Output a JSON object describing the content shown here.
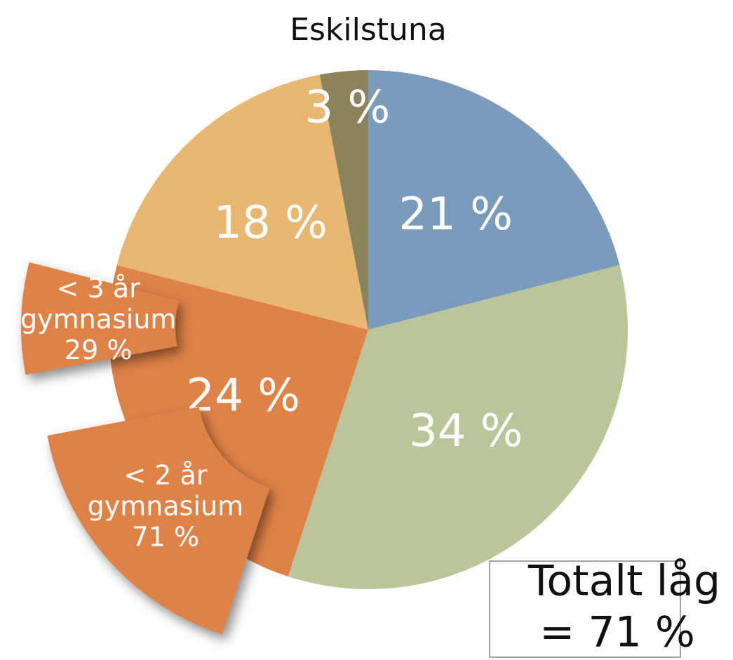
{
  "chart_data": {
    "type": "pie",
    "title": "Eskilstuna",
    "categories": [
      null,
      null,
      null,
      null,
      null
    ],
    "values": [
      21,
      34,
      24,
      18,
      3
    ],
    "value_labels": [
      "21 %",
      "34 %",
      "24 %",
      "18 %",
      "3 %"
    ],
    "colors": [
      "#7a9bbb",
      "#bcc49a",
      "#df8248",
      "#e8b872",
      "#8a835c"
    ],
    "breakdown": [
      {
        "lines": [
          "< 2 år",
          "gymnasium"
        ],
        "value": 71,
        "value_label": "71 %"
      },
      {
        "lines": [
          "< 3 år",
          "gymnasium"
        ],
        "value": 29,
        "value_label": "29 %"
      }
    ],
    "annotation": [
      "Totalt låg",
      "= 71 %"
    ]
  }
}
